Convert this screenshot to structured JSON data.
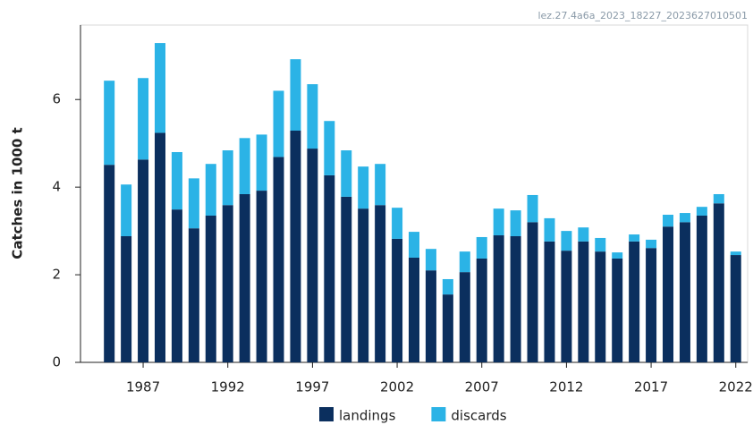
{
  "chart_data": {
    "type": "stacked_bar",
    "source_label": "lez.27.4a6a_2023_18227_2023627010501",
    "y_label": "Catches in 1000 t",
    "x": [
      1985,
      1986,
      1987,
      1988,
      1989,
      1990,
      1991,
      1992,
      1993,
      1994,
      1995,
      1996,
      1997,
      1998,
      1999,
      2000,
      2001,
      2002,
      2003,
      2004,
      2005,
      2006,
      2007,
      2008,
      2009,
      2010,
      2011,
      2012,
      2013,
      2014,
      2015,
      2016,
      2017,
      2018,
      2019,
      2020,
      2021,
      2022
    ],
    "series": [
      {
        "name": "landings",
        "color": "#0b2f5e",
        "values": [
          4.51,
          2.88,
          4.63,
          5.24,
          3.49,
          3.06,
          3.35,
          3.59,
          3.84,
          3.92,
          4.69,
          5.29,
          4.88,
          4.27,
          3.78,
          3.51,
          3.59,
          2.82,
          2.39,
          2.1,
          1.55,
          2.06,
          2.37,
          2.9,
          2.88,
          3.2,
          2.76,
          2.55,
          2.76,
          2.53,
          2.37,
          2.76,
          2.61,
          3.1,
          3.2,
          3.35,
          3.63,
          2.45
        ]
      },
      {
        "name": "discards",
        "color": "#2bb3e6",
        "values": [
          1.92,
          1.18,
          1.86,
          2.05,
          1.31,
          1.14,
          1.18,
          1.25,
          1.28,
          1.28,
          1.51,
          1.63,
          1.47,
          1.24,
          1.06,
          0.96,
          0.94,
          0.71,
          0.59,
          0.49,
          0.35,
          0.47,
          0.49,
          0.61,
          0.59,
          0.62,
          0.53,
          0.45,
          0.32,
          0.31,
          0.14,
          0.16,
          0.19,
          0.27,
          0.21,
          0.2,
          0.21,
          0.08
        ]
      }
    ],
    "xlim": [
      1983.3,
      2022.7
    ],
    "xticks": [
      1987,
      1992,
      1997,
      2002,
      2007,
      2012,
      2017,
      2022
    ],
    "ylim": [
      0,
      7.7
    ],
    "yticks": [
      0,
      2,
      4,
      6
    ],
    "grid": false
  }
}
